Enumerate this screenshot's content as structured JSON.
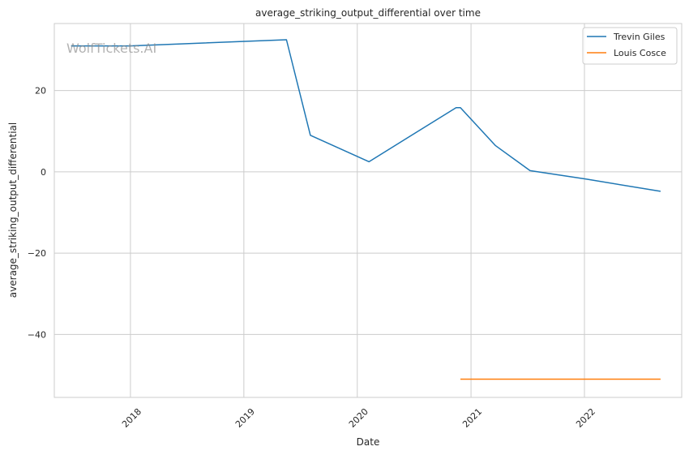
{
  "watermark": "WolfTickets.AI",
  "chart_data": {
    "type": "line",
    "title": "average_striking_output_differential over time",
    "xlabel": "Date",
    "ylabel": "average_striking_output_differential",
    "xlim": [
      "2017-05-01",
      "2022-11-10"
    ],
    "ylim": [
      -55.5,
      36.5
    ],
    "x_ticks": [
      "2018-01-01",
      "2019-01-01",
      "2020-01-01",
      "2021-01-01",
      "2022-01-01"
    ],
    "x_tick_labels": [
      "2018",
      "2019",
      "2020",
      "2021",
      "2022"
    ],
    "y_ticks": [
      20,
      0,
      -20,
      -40
    ],
    "y_tick_labels": [
      "20",
      "0",
      "−20",
      "−40"
    ],
    "grid": true,
    "legend_position": "top-right",
    "series": [
      {
        "name": "Trevin Giles",
        "color": "#1f77b4",
        "points": [
          [
            "2017-06-24",
            31.0
          ],
          [
            "2017-12-30",
            31.0
          ],
          [
            "2019-05-18",
            32.5
          ],
          [
            "2019-08-03",
            9.0
          ],
          [
            "2020-02-08",
            2.5
          ],
          [
            "2020-11-14",
            15.8
          ],
          [
            "2020-11-28",
            15.8
          ],
          [
            "2021-03-20",
            6.5
          ],
          [
            "2021-07-10",
            0.3
          ],
          [
            "2022-01-08",
            -1.8
          ],
          [
            "2022-09-03",
            -4.8
          ]
        ]
      },
      {
        "name": "Louis Cosce",
        "color": "#ff7f0e",
        "points": [
          [
            "2020-11-28",
            -51.0
          ],
          [
            "2022-09-03",
            -51.0
          ]
        ]
      }
    ]
  }
}
